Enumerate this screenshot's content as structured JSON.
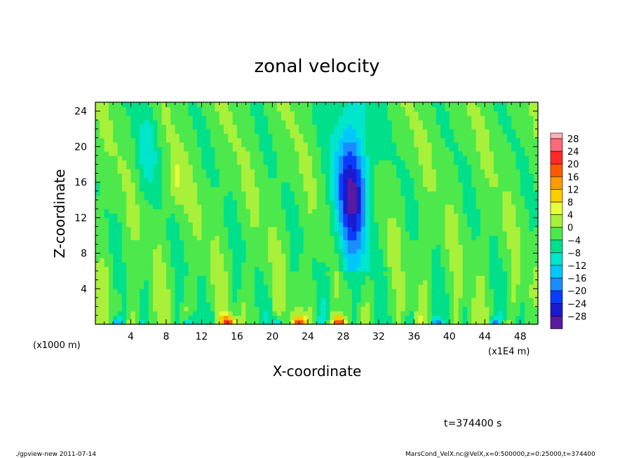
{
  "chart_data": {
    "type": "heatmap",
    "title": "zonal velocity",
    "xlabel": "X-coordinate",
    "ylabel": "Z-coordinate",
    "x_unit_left": "(x1000 m)",
    "x_unit_right": "(x1E4 m)",
    "xlim": [
      0,
      50
    ],
    "ylim": [
      0,
      25
    ],
    "x_ticks": [
      4,
      8,
      12,
      16,
      20,
      24,
      28,
      32,
      36,
      40,
      44,
      48
    ],
    "y_ticks": [
      4,
      8,
      12,
      16,
      20,
      24
    ],
    "colorbar": {
      "levels": [
        28,
        24,
        20,
        16,
        12,
        8,
        4,
        0,
        -4,
        -8,
        -12,
        -16,
        -20,
        -24,
        -28
      ],
      "colors": [
        "#ff6a7a",
        "#ff2a2a",
        "#ff5a00",
        "#ff9a00",
        "#ffcc00",
        "#e6ff3a",
        "#a8f03a",
        "#4ce84c",
        "#00e08a",
        "#00e6cc",
        "#00c8ff",
        "#1a8cff",
        "#0a3cff",
        "#1a1ad0",
        "#5a1aa0"
      ],
      "top_color": "#ffb0b8"
    },
    "features": {
      "background_value": 2,
      "strong_negative_x_range": [
        26,
        32
      ],
      "strong_negative_z_range": [
        8,
        24
      ],
      "strong_negative_peak": -20,
      "surface_positive_peaks_x": [
        15,
        23,
        27.5
      ],
      "surface_positive_peak_value": 24
    },
    "grid": false
  },
  "time_label": "t=374400 s",
  "footer": {
    "left": "./gpview-new  2011-07-14",
    "right": "MarsCond_VelX.nc@VelX,x=0:500000,z=0:25000,t=374400"
  }
}
